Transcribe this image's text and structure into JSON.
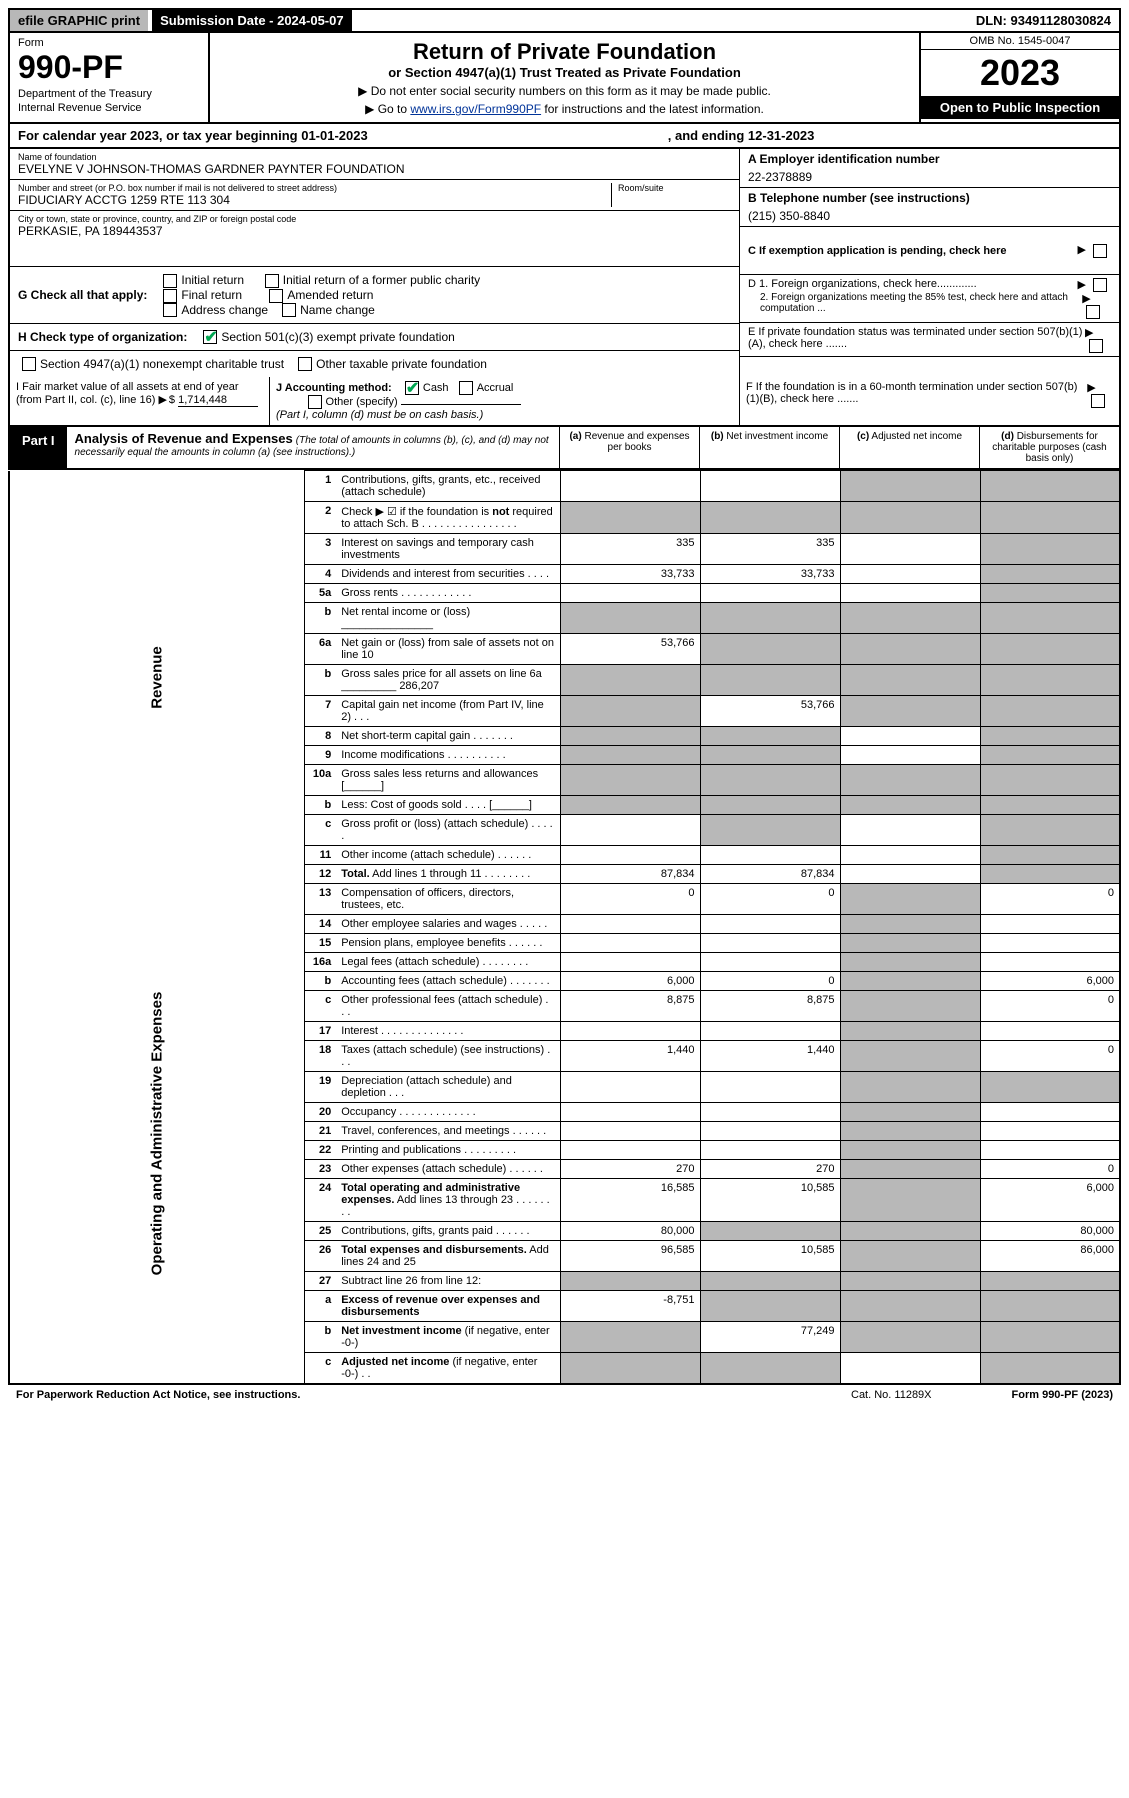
{
  "top": {
    "efile": "efile GRAPHIC print",
    "submission": "Submission Date - 2024-05-07",
    "dln": "DLN: 93491128030824"
  },
  "header": {
    "form": "Form",
    "formNum": "990-PF",
    "dept1": "Department of the Treasury",
    "dept2": "Internal Revenue Service",
    "title": "Return of Private Foundation",
    "subtitle": "or Section 4947(a)(1) Trust Treated as Private Foundation",
    "instr1": "▶ Do not enter social security numbers on this form as it may be made public.",
    "instr2a": "▶ Go to ",
    "instr2link": "www.irs.gov/Form990PF",
    "instr2b": " for instructions and the latest information.",
    "omb": "OMB No. 1545-0047",
    "year": "2023",
    "open": "Open to Public Inspection"
  },
  "calyear": {
    "a": "For calendar year 2023, or tax year beginning 01-01-2023",
    "b": ", and ending 12-31-2023"
  },
  "info": {
    "nameLbl": "Name of foundation",
    "name": "EVELYNE V JOHNSON-THOMAS GARDNER PAYNTER FOUNDATION",
    "addrLbl": "Number and street (or P.O. box number if mail is not delivered to street address)",
    "addr": "FIDUCIARY ACCTG 1259 RTE 113 304",
    "roomLbl": "Room/suite",
    "cityLbl": "City or town, state or province, country, and ZIP or foreign postal code",
    "city": "PERKASIE, PA  189443537",
    "einLbl": "A Employer identification number",
    "ein": "22-2378889",
    "telLbl": "B Telephone number (see instructions)",
    "tel": "(215) 350-8840",
    "cLbl": "C If exemption application is pending, check here",
    "d1": "D 1. Foreign organizations, check here.............",
    "d2": "2. Foreign organizations meeting the 85% test, check here and attach computation ...",
    "eLbl": "E  If private foundation status was terminated under section 507(b)(1)(A), check here .......",
    "fLbl": "F  If the foundation is in a 60-month termination under section 507(b)(1)(B), check here .......",
    "gLbl": "G Check all that apply:",
    "g1": "Initial return",
    "g2": "Final return",
    "g3": "Address change",
    "g4": "Initial return of a former public charity",
    "g5": "Amended return",
    "g6": "Name change",
    "hLbl": "H Check type of organization:",
    "h1": "Section 501(c)(3) exempt private foundation",
    "h2": "Section 4947(a)(1) nonexempt charitable trust",
    "h3": "Other taxable private foundation",
    "iLbl": "I Fair market value of all assets at end of year (from Part II, col. (c), line 16)",
    "iVal": "1,714,448",
    "jLbl": "J Accounting method:",
    "j1": "Cash",
    "j2": "Accrual",
    "j3": "Other (specify)",
    "jNote": "(Part I, column (d) must be on cash basis.)"
  },
  "part1": {
    "label": "Part I",
    "title": "Analysis of Revenue and Expenses",
    "titleNote": "(The total of amounts in columns (b), (c), and (d) may not necessarily equal the amounts in column (a) (see instructions).)",
    "colA": "(a)",
    "colAlbl": "Revenue and expenses per books",
    "colB": "(b)",
    "colBlbl": "Net investment income",
    "colC": "(c)",
    "colClbl": "Adjusted net income",
    "colD": "(d)",
    "colDlbl": "Disbursements for charitable purposes (cash basis only)"
  },
  "sides": {
    "rev": "Revenue",
    "exp": "Operating and Administrative Expenses"
  },
  "rows": [
    {
      "n": "1",
      "d": "Contributions, gifts, grants, etc., received (attach schedule)",
      "a": "",
      "b": "",
      "c": "s",
      "dS": "s"
    },
    {
      "n": "2",
      "d": "Check ▶ ☑ if the foundation is <b>not</b> required to attach Sch. B   .   .   .   .   .   .   .   .   .   .   .   .   .   .   .   .",
      "a": "s",
      "b": "s",
      "c": "s",
      "dS": "s"
    },
    {
      "n": "3",
      "d": "Interest on savings and temporary cash investments",
      "a": "335",
      "b": "335",
      "c": "",
      "dS": "s"
    },
    {
      "n": "4",
      "d": "Dividends and interest from securities   .   .   .   .",
      "a": "33,733",
      "b": "33,733",
      "c": "",
      "dS": "s"
    },
    {
      "n": "5a",
      "d": "Gross rents   .   .   .   .   .   .   .   .   .   .   .   .",
      "a": "",
      "b": "",
      "c": "",
      "dS": "s"
    },
    {
      "n": "b",
      "d": "Net rental income or (loss) _______________",
      "a": "s",
      "b": "s",
      "c": "s",
      "dS": "s"
    },
    {
      "n": "6a",
      "d": "Net gain or (loss) from sale of assets not on line 10",
      "a": "53,766",
      "b": "s",
      "c": "s",
      "dS": "s"
    },
    {
      "n": "b",
      "d": "Gross sales price for all assets on line 6a _________ 286,207",
      "a": "s",
      "b": "s",
      "c": "s",
      "dS": "s"
    },
    {
      "n": "7",
      "d": "Capital gain net income (from Part IV, line 2)   .   .   .",
      "a": "s",
      "b": "53,766",
      "c": "s",
      "dS": "s"
    },
    {
      "n": "8",
      "d": "Net short-term capital gain   .   .   .   .   .   .   .",
      "a": "s",
      "b": "s",
      "c": "",
      "dS": "s"
    },
    {
      "n": "9",
      "d": "Income modifications .   .   .   .   .   .   .   .   .   .",
      "a": "s",
      "b": "s",
      "c": "",
      "dS": "s"
    },
    {
      "n": "10a",
      "d": "Gross sales less returns and allowances  [______]",
      "a": "s",
      "b": "s",
      "c": "s",
      "dS": "s"
    },
    {
      "n": "b",
      "d": "Less: Cost of goods sold   .   .   .   .    [______]",
      "a": "s",
      "b": "s",
      "c": "s",
      "dS": "s"
    },
    {
      "n": "c",
      "d": "Gross profit or (loss) (attach schedule)   .   .   .   .   .",
      "a": "",
      "b": "s",
      "c": "",
      "dS": "s"
    },
    {
      "n": "11",
      "d": "Other income (attach schedule)   .   .   .   .   .   .",
      "a": "",
      "b": "",
      "c": "",
      "dS": "s"
    },
    {
      "n": "12",
      "d": "<b>Total.</b> Add lines 1 through 11   .   .   .   .   .   .   .   .",
      "a": "87,834",
      "b": "87,834",
      "c": "",
      "dS": "s"
    },
    {
      "n": "13",
      "d": "Compensation of officers, directors, trustees, etc.",
      "a": "0",
      "b": "0",
      "c": "s",
      "dS": "0"
    },
    {
      "n": "14",
      "d": "Other employee salaries and wages   .   .   .   .   .",
      "a": "",
      "b": "",
      "c": "s",
      "dS": ""
    },
    {
      "n": "15",
      "d": "Pension plans, employee benefits  .   .   .   .   .   .",
      "a": "",
      "b": "",
      "c": "s",
      "dS": ""
    },
    {
      "n": "16a",
      "d": "Legal fees (attach schedule) .   .   .   .   .   .   .   .",
      "a": "",
      "b": "",
      "c": "s",
      "dS": ""
    },
    {
      "n": "b",
      "d": "Accounting fees (attach schedule) .   .   .   .   .   .   .",
      "a": "6,000",
      "b": "0",
      "c": "s",
      "dS": "6,000"
    },
    {
      "n": "c",
      "d": "Other professional fees (attach schedule)   .   .   .",
      "a": "8,875",
      "b": "8,875",
      "c": "s",
      "dS": "0"
    },
    {
      "n": "17",
      "d": "Interest .   .   .   .   .   .   .   .   .   .   .   .   .   .",
      "a": "",
      "b": "",
      "c": "s",
      "dS": ""
    },
    {
      "n": "18",
      "d": "Taxes (attach schedule) (see instructions)   .   .   .",
      "a": "1,440",
      "b": "1,440",
      "c": "s",
      "dS": "0"
    },
    {
      "n": "19",
      "d": "Depreciation (attach schedule) and depletion   .   .   .",
      "a": "",
      "b": "",
      "c": "s",
      "dS": "s"
    },
    {
      "n": "20",
      "d": "Occupancy .   .   .   .   .   .   .   .   .   .   .   .   .",
      "a": "",
      "b": "",
      "c": "s",
      "dS": ""
    },
    {
      "n": "21",
      "d": "Travel, conferences, and meetings .   .   .   .   .   .",
      "a": "",
      "b": "",
      "c": "s",
      "dS": ""
    },
    {
      "n": "22",
      "d": "Printing and publications .   .   .   .   .   .   .   .   .",
      "a": "",
      "b": "",
      "c": "s",
      "dS": ""
    },
    {
      "n": "23",
      "d": "Other expenses (attach schedule) .   .   .   .   .   .",
      "a": "270",
      "b": "270",
      "c": "s",
      "dS": "0"
    },
    {
      "n": "24",
      "d": "<b>Total operating and administrative expenses.</b> Add lines 13 through 23   .   .   .   .   .   .   .   .",
      "a": "16,585",
      "b": "10,585",
      "c": "s",
      "dS": "6,000"
    },
    {
      "n": "25",
      "d": "Contributions, gifts, grants paid   .   .   .   .   .   .",
      "a": "80,000",
      "b": "s",
      "c": "s",
      "dS": "80,000"
    },
    {
      "n": "26",
      "d": "<b>Total expenses and disbursements.</b> Add lines 24 and 25",
      "a": "96,585",
      "b": "10,585",
      "c": "s",
      "dS": "86,000"
    },
    {
      "n": "27",
      "d": "Subtract line 26 from line 12:",
      "a": "s",
      "b": "s",
      "c": "s",
      "dS": "s"
    },
    {
      "n": "a",
      "d": "<b>Excess of revenue over expenses and disbursements</b>",
      "a": "-8,751",
      "b": "s",
      "c": "s",
      "dS": "s"
    },
    {
      "n": "b",
      "d": "<b>Net investment income</b> (if negative, enter -0-)",
      "a": "s",
      "b": "77,249",
      "c": "s",
      "dS": "s"
    },
    {
      "n": "c",
      "d": "<b>Adjusted net income</b> (if negative, enter -0-)   .   .",
      "a": "s",
      "b": "s",
      "c": "",
      "dS": "s"
    }
  ],
  "footer": {
    "left": "For Paperwork Reduction Act Notice, see instructions.",
    "center": "Cat. No. 11289X",
    "right": "Form 990-PF (2023)"
  }
}
